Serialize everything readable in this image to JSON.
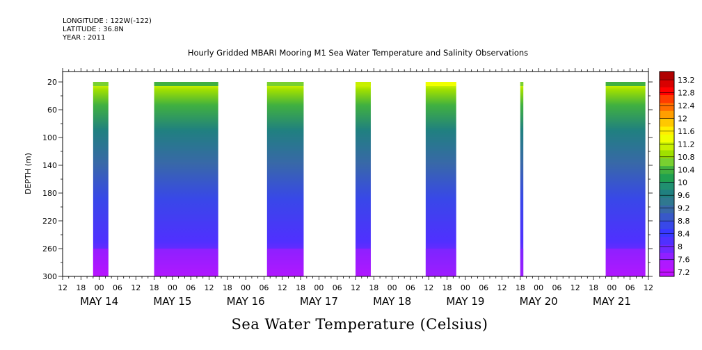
{
  "header": {
    "longitude": "LONGITUDE : 122W(-122)",
    "latitude": "LATITUDE : 36.8N",
    "year": "YEAR : 2011"
  },
  "chart_data": {
    "type": "heatmap",
    "title": "Hourly Gridded MBARI Mooring M1 Sea Water Temperature and Salinity Observations",
    "bottom_title": "Sea Water Temperature (Celsius)",
    "ylabel": "DEPTH (m)",
    "ylim": [
      300,
      5
    ],
    "y_ticks": [
      20,
      60,
      100,
      140,
      180,
      220,
      260,
      300
    ],
    "x_hour_ticks": [
      "12",
      "18",
      "00",
      "06",
      "12",
      "18",
      "00",
      "06",
      "12",
      "18",
      "00",
      "06",
      "12",
      "18",
      "00",
      "06",
      "12",
      "18",
      "00",
      "06",
      "12",
      "18",
      "00",
      "06",
      "12",
      "18",
      "00",
      "06",
      "12",
      "18",
      "00",
      "06",
      "12"
    ],
    "x_day_labels": [
      "MAY 14",
      "MAY 15",
      "MAY 16",
      "MAY 17",
      "MAY 18",
      "MAY 19",
      "MAY 20",
      "MAY 21"
    ],
    "x_unit": "hours since May 14 12:00",
    "xlim": [
      0,
      192
    ],
    "colorbar": {
      "labels": [
        "13.2",
        "12.8",
        "12.4",
        "12",
        "11.6",
        "11.2",
        "10.8",
        "10.4",
        "10",
        "9.6",
        "9.2",
        "8.8",
        "8.4",
        "8",
        "7.6",
        "7.2"
      ],
      "colors": [
        "#b00000",
        "#d80000",
        "#ff0000",
        "#ff3c00",
        "#ff6e00",
        "#ff9e00",
        "#ffc800",
        "#ffee00",
        "#f0ff00",
        "#c8f000",
        "#a0e000",
        "#78d030",
        "#40b040",
        "#20a050",
        "#209070",
        "#208080",
        "#307890",
        "#3868a8",
        "#3858c8",
        "#3848e8",
        "#3838ff",
        "#5030ff",
        "#7028ff",
        "#9020ff",
        "#b018ff",
        "#c010ff"
      ],
      "vmin": 7.0,
      "vmax": 13.4
    },
    "segments": [
      {
        "x0": 10,
        "x1": 15,
        "surface_temp": 10.6,
        "bottom_temp": 7.2,
        "top_depth": 20
      },
      {
        "x0": 30,
        "x1": 51,
        "surface_temp": 10.4,
        "bottom_temp": 7.3,
        "top_depth": 20
      },
      {
        "x0": 67,
        "x1": 79,
        "surface_temp": 10.5,
        "bottom_temp": 7.4,
        "top_depth": 20
      },
      {
        "x0": 96,
        "x1": 101,
        "surface_temp": 11.0,
        "bottom_temp": 7.4,
        "top_depth": 20
      },
      {
        "x0": 119,
        "x1": 129,
        "surface_temp": 11.3,
        "bottom_temp": 7.7,
        "top_depth": 20
      },
      {
        "x0": 150,
        "x1": 151,
        "surface_temp": 10.6,
        "bottom_temp": 7.5,
        "top_depth": 20
      },
      {
        "x0": 178,
        "x1": 191,
        "surface_temp": 10.4,
        "bottom_temp": 7.3,
        "top_depth": 20
      }
    ]
  }
}
